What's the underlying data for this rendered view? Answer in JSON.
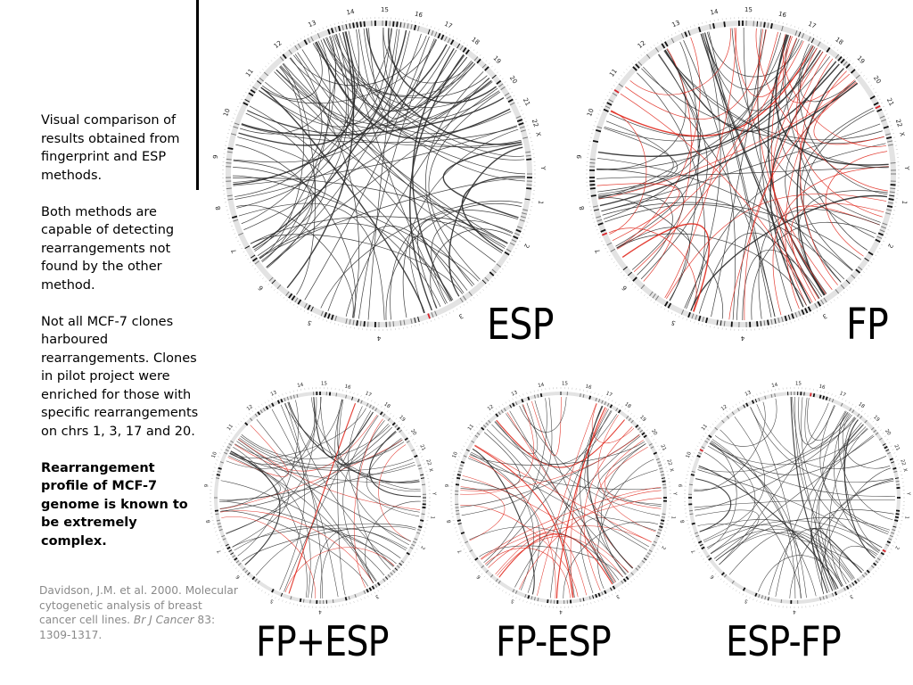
{
  "sidebar": {
    "p1": "Visual comparison of results obtained from fingerprint and ESP methods.",
    "p2": "Both methods are capable of detecting rearrangements not found by the other method.",
    "p3": "Not all MCF-7 clones harboured rearrangements. Clones in pilot project were enriched for those with specific rearrangements on chrs 1, 3, 17 and 20.",
    "p4": "Rearrangement profile of MCF-7 genome is known to be extremely complex.",
    "citation_main": "Davidson, J.M. et al. 2000. Molecular cytogenetic analysis of breast cancer cell lines.",
    "citation_journal": "Br J Cancer",
    "citation_tail": " 83: 1309-1317."
  },
  "chromosome_labels": [
    "1",
    "2",
    "3",
    "4",
    "5",
    "6",
    "7",
    "8",
    "9",
    "10",
    "11",
    "12",
    "13",
    "14",
    "15",
    "16",
    "17",
    "18",
    "19",
    "20",
    "21",
    "22",
    "X",
    "Y"
  ],
  "plots": [
    {
      "label": "ESP",
      "red": 0
    },
    {
      "label": "FP",
      "red": 0.35
    },
    {
      "label": "FP+ESP",
      "red": 0.14
    },
    {
      "label": "FP-ESP",
      "red": 0.42
    },
    {
      "label": "ESP-FP",
      "red": 0
    }
  ],
  "colors": {
    "link": "#2b2b2b",
    "red_link": "#e0291e",
    "ideogram_dark": "#111111",
    "centromere": "#d8232a"
  }
}
